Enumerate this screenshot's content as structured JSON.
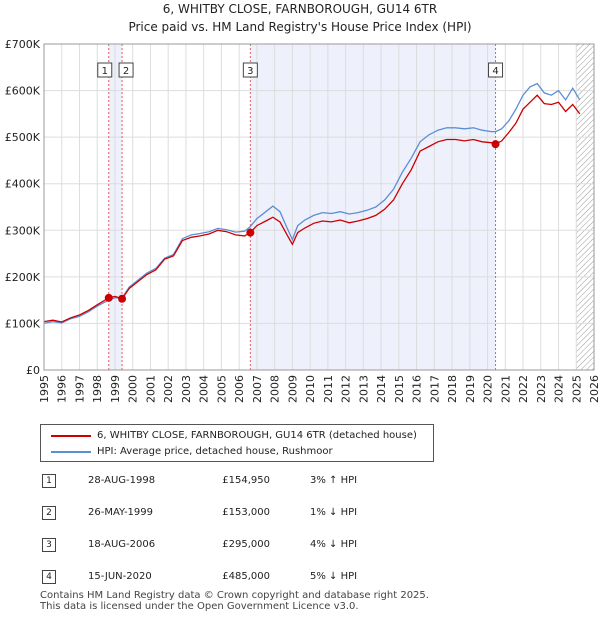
{
  "chart_data": {
    "type": "line",
    "title": "6, WHITBY CLOSE, FARNBOROUGH, GU14 6TR",
    "subtitle": "Price paid vs. HM Land Registry's House Price Index (HPI)",
    "xlabel": "",
    "ylabel": "",
    "xlim": [
      1995,
      2026
    ],
    "ylim": [
      0,
      700000
    ],
    "y_ticks": [
      {
        "value": 0,
        "label": "£0"
      },
      {
        "value": 100000,
        "label": "£100K"
      },
      {
        "value": 200000,
        "label": "£200K"
      },
      {
        "value": 300000,
        "label": "£300K"
      },
      {
        "value": 400000,
        "label": "£400K"
      },
      {
        "value": 500000,
        "label": "£500K"
      },
      {
        "value": 600000,
        "label": "£600K"
      },
      {
        "value": 700000,
        "label": "£700K"
      }
    ],
    "x_ticks": [
      "1995",
      "1996",
      "1997",
      "1998",
      "1999",
      "2000",
      "2001",
      "2002",
      "2003",
      "2004",
      "2005",
      "2006",
      "2007",
      "2008",
      "2009",
      "2010",
      "2011",
      "2012",
      "2013",
      "2014",
      "2015",
      "2016",
      "2017",
      "2018",
      "2019",
      "2020",
      "2021",
      "2022",
      "2023",
      "2024",
      "2025",
      "2026"
    ],
    "grid": true,
    "shaded_spans": [
      [
        1998.65,
        1999.4
      ],
      [
        2006.63,
        2020.45
      ]
    ],
    "hatched_from": 2025.0,
    "series": [
      {
        "name": "6, WHITBY CLOSE, FARNBOROUGH, GU14 6TR (detached house)",
        "color": "#cc0000",
        "x": [
          1995.0,
          1995.5,
          1996.0,
          1996.5,
          1997.0,
          1997.5,
          1998.0,
          1998.65,
          1999.0,
          1999.4,
          1999.8,
          2000.3,
          2000.8,
          2001.3,
          2001.8,
          2002.3,
          2002.8,
          2003.3,
          2003.8,
          2004.3,
          2004.8,
          2005.3,
          2005.8,
          2006.3,
          2006.63,
          2007.0,
          2007.5,
          2007.9,
          2008.3,
          2008.7,
          2009.0,
          2009.3,
          2009.7,
          2010.2,
          2010.7,
          2011.2,
          2011.7,
          2012.2,
          2012.7,
          2013.2,
          2013.7,
          2014.2,
          2014.7,
          2015.2,
          2015.7,
          2016.2,
          2016.7,
          2017.2,
          2017.7,
          2018.2,
          2018.7,
          2019.2,
          2019.7,
          2020.2,
          2020.45,
          2020.8,
          2021.2,
          2021.6,
          2022.0,
          2022.4,
          2022.8,
          2023.2,
          2023.6,
          2024.0,
          2024.4,
          2024.8,
          2025.2
        ],
        "values": [
          104000,
          107000,
          103000,
          112000,
          118000,
          128000,
          140000,
          154950,
          158000,
          153000,
          175000,
          190000,
          205000,
          215000,
          238000,
          245000,
          278000,
          285000,
          288000,
          292000,
          300000,
          297000,
          290000,
          288000,
          295000,
          310000,
          320000,
          328000,
          318000,
          290000,
          270000,
          295000,
          305000,
          315000,
          320000,
          318000,
          322000,
          316000,
          320000,
          325000,
          332000,
          345000,
          365000,
          400000,
          430000,
          470000,
          480000,
          490000,
          495000,
          495000,
          492000,
          495000,
          490000,
          488000,
          485000,
          492000,
          510000,
          530000,
          560000,
          575000,
          590000,
          572000,
          570000,
          575000,
          555000,
          570000,
          550000
        ]
      },
      {
        "name": "HPI: Average price, detached house, Rushmoor",
        "color": "#5b8fd4",
        "x": [
          1995.0,
          1995.5,
          1996.0,
          1996.5,
          1997.0,
          1997.5,
          1998.0,
          1998.65,
          1999.0,
          1999.4,
          1999.8,
          2000.3,
          2000.8,
          2001.3,
          2001.8,
          2002.3,
          2002.8,
          2003.3,
          2003.8,
          2004.3,
          2004.8,
          2005.3,
          2005.8,
          2006.3,
          2006.63,
          2007.0,
          2007.5,
          2007.9,
          2008.3,
          2008.7,
          2009.0,
          2009.3,
          2009.7,
          2010.2,
          2010.7,
          2011.2,
          2011.7,
          2012.2,
          2012.7,
          2013.2,
          2013.7,
          2014.2,
          2014.7,
          2015.2,
          2015.7,
          2016.2,
          2016.7,
          2017.2,
          2017.7,
          2018.2,
          2018.7,
          2019.2,
          2019.7,
          2020.2,
          2020.45,
          2020.8,
          2021.2,
          2021.6,
          2022.0,
          2022.4,
          2022.8,
          2023.2,
          2023.6,
          2024.0,
          2024.4,
          2024.8,
          2025.2
        ],
        "values": [
          100000,
          104000,
          101000,
          110000,
          115000,
          125000,
          137000,
          150000,
          155000,
          155000,
          178000,
          193000,
          208000,
          218000,
          240000,
          248000,
          282000,
          290000,
          293000,
          297000,
          304000,
          301000,
          296000,
          298000,
          308000,
          325000,
          340000,
          352000,
          340000,
          305000,
          280000,
          310000,
          322000,
          332000,
          338000,
          336000,
          340000,
          335000,
          338000,
          343000,
          350000,
          365000,
          388000,
          425000,
          455000,
          490000,
          505000,
          515000,
          520000,
          520000,
          518000,
          520000,
          515000,
          512000,
          512000,
          518000,
          535000,
          560000,
          590000,
          608000,
          615000,
          595000,
          590000,
          600000,
          580000,
          605000,
          580000
        ]
      }
    ],
    "sales": [
      {
        "id": "1",
        "x": 1998.65,
        "value": 154950
      },
      {
        "id": "2",
        "x": 1999.4,
        "value": 153000
      },
      {
        "id": "3",
        "x": 2006.63,
        "value": 295000
      },
      {
        "id": "4",
        "x": 2020.45,
        "value": 485000
      }
    ]
  },
  "legend": {
    "items": [
      {
        "label": "6, WHITBY CLOSE, FARNBOROUGH, GU14 6TR (detached house)",
        "color": "#cc0000"
      },
      {
        "label": "HPI: Average price, detached house, Rushmoor",
        "color": "#5b8fd4"
      }
    ]
  },
  "transactions": [
    {
      "num": "1",
      "date": "28-AUG-1998",
      "price": "£154,950",
      "hpi": "3% ↑ HPI"
    },
    {
      "num": "2",
      "date": "26-MAY-1999",
      "price": "£153,000",
      "hpi": "1% ↓ HPI"
    },
    {
      "num": "3",
      "date": "18-AUG-2006",
      "price": "£295,000",
      "hpi": "4% ↓ HPI"
    },
    {
      "num": "4",
      "date": "15-JUN-2020",
      "price": "£485,000",
      "hpi": "5% ↓ HPI"
    }
  ],
  "footer": {
    "line1": "Contains HM Land Registry data © Crown copyright and database right 2025.",
    "line2": "This data is licensed under the Open Government Licence v3.0."
  }
}
